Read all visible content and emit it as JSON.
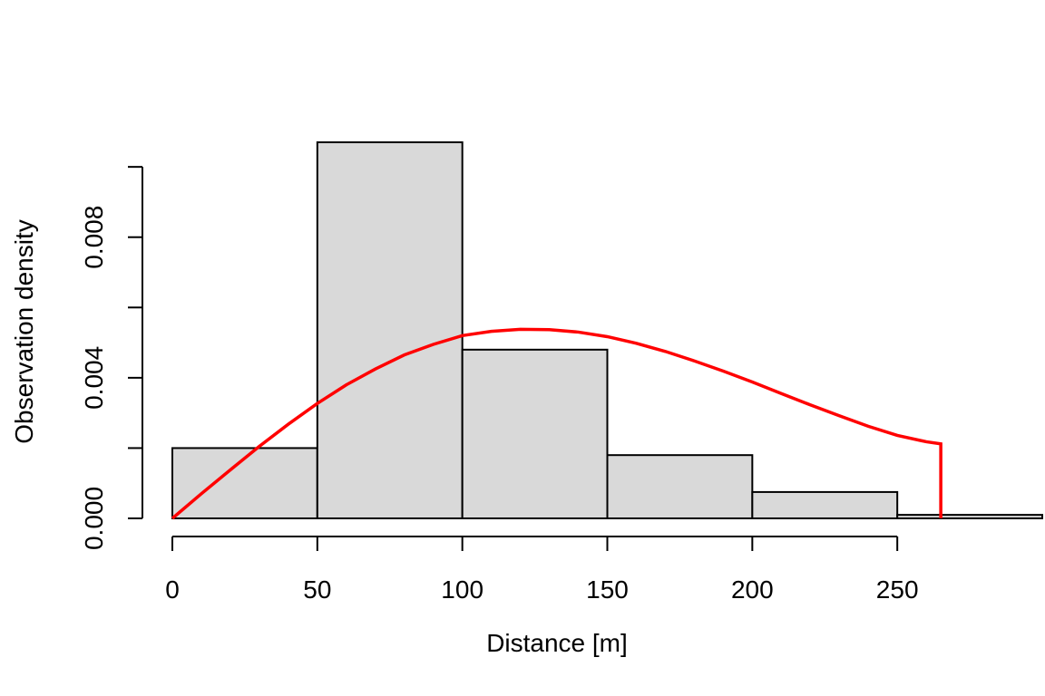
{
  "chart_data": {
    "type": "bar",
    "title": "",
    "xlabel": "Distance [m]",
    "ylabel": "Observation density",
    "xlim": [
      0,
      300
    ],
    "ylim": [
      0,
      0.0107
    ],
    "x_ticks": [
      0,
      50,
      100,
      150,
      200,
      250
    ],
    "x_tick_labels": [
      "0",
      "50",
      "100",
      "150",
      "200",
      "250"
    ],
    "y_ticks": [
      0,
      0.002,
      0.004,
      0.006,
      0.008,
      0.01
    ],
    "y_tick_labels": [
      "0.000",
      "",
      "0.004",
      "",
      "0.008",
      ""
    ],
    "grid": false,
    "bins": [
      {
        "from": 0,
        "to": 50,
        "density": 0.002
      },
      {
        "from": 50,
        "to": 100,
        "density": 0.0107
      },
      {
        "from": 100,
        "to": 150,
        "density": 0.0048
      },
      {
        "from": 150,
        "to": 200,
        "density": 0.0018
      },
      {
        "from": 200,
        "to": 250,
        "density": 0.00075
      },
      {
        "from": 250,
        "to": 300,
        "density": 0.0001
      }
    ],
    "bar_fill": "#d9d9d9",
    "bar_stroke": "#000000",
    "fitted_curve": {
      "color": "#ff0000",
      "truncation": 265,
      "points": [
        [
          0,
          0
        ],
        [
          10,
          0.0007
        ],
        [
          20,
          0.00138
        ],
        [
          30,
          0.00205
        ],
        [
          40,
          0.00268
        ],
        [
          50,
          0.00327
        ],
        [
          60,
          0.0038
        ],
        [
          70,
          0.00425
        ],
        [
          80,
          0.00465
        ],
        [
          90,
          0.00495
        ],
        [
          100,
          0.0052
        ],
        [
          110,
          0.00532
        ],
        [
          120,
          0.00538
        ],
        [
          130,
          0.00537
        ],
        [
          140,
          0.0053
        ],
        [
          150,
          0.00517
        ],
        [
          160,
          0.00498
        ],
        [
          170,
          0.00475
        ],
        [
          180,
          0.00448
        ],
        [
          190,
          0.00419
        ],
        [
          200,
          0.00388
        ],
        [
          210,
          0.00355
        ],
        [
          220,
          0.00323
        ],
        [
          230,
          0.00292
        ],
        [
          240,
          0.00262
        ],
        [
          250,
          0.00236
        ],
        [
          260,
          0.00218
        ],
        [
          265,
          0.00212
        ],
        [
          265,
          0
        ]
      ]
    }
  }
}
